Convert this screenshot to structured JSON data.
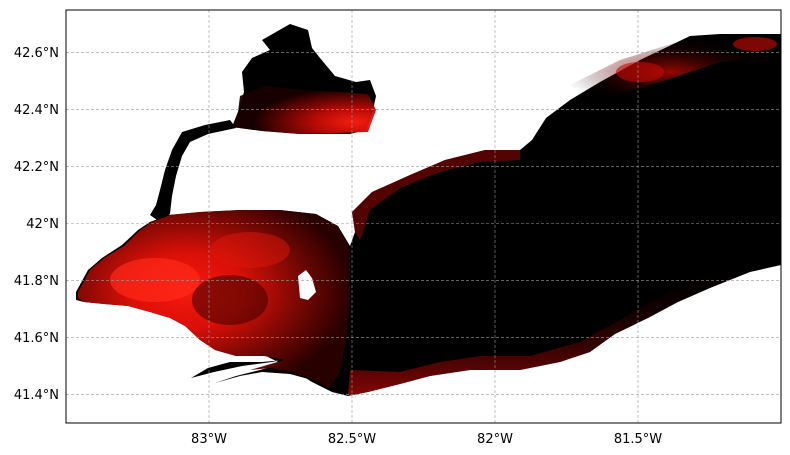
{
  "map": {
    "projection": "PlateCarree",
    "extent_lon": [
      -83.5,
      -81.0
    ],
    "extent_lat": [
      41.3,
      42.75
    ],
    "gridlines": "dashed-gray",
    "colormap": [
      "#000000",
      "#ff0000"
    ],
    "land_color": "#ffffff",
    "x_ticks": [
      {
        "lon": -83.0,
        "label": "83°W"
      },
      {
        "lon": -82.5,
        "label": "82.5°W"
      },
      {
        "lon": -82.0,
        "label": "82°W"
      },
      {
        "lon": -81.5,
        "label": "81.5°W"
      }
    ],
    "y_ticks": [
      {
        "lat": 42.6,
        "label": "42.6°N"
      },
      {
        "lat": 42.4,
        "label": "42.4°N"
      },
      {
        "lat": 42.2,
        "label": "42.2°N"
      },
      {
        "lat": 42.0,
        "label": "42°N"
      },
      {
        "lat": 41.8,
        "label": "41.8°N"
      },
      {
        "lat": 41.6,
        "label": "41.6°N"
      },
      {
        "lat": 41.4,
        "label": "41.4°N"
      }
    ],
    "features": [
      {
        "name": "lake-st-clair",
        "value": "high"
      },
      {
        "name": "western-basin",
        "value": "high"
      },
      {
        "name": "central-basin",
        "value": "low"
      }
    ]
  }
}
